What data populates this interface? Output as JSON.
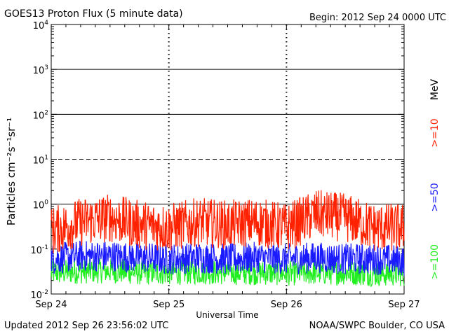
{
  "chart_data": {
    "type": "line",
    "title": "GOES13 Proton Flux (5 minute data)",
    "begin_label": "Begin: 2012 Sep 24 0000 UTC",
    "ylabel": "Particles cm⁻²s⁻¹sr⁻¹",
    "xlabel": "Universal Time",
    "y_scale": "log",
    "ylim": [
      0.01,
      10000
    ],
    "y_ticks": [
      {
        "value": 0.01,
        "base": "10",
        "exp": "-2"
      },
      {
        "value": 0.1,
        "base": "10",
        "exp": "-1"
      },
      {
        "value": 1,
        "base": "10",
        "exp": "0"
      },
      {
        "value": 10,
        "base": "10",
        "exp": "1"
      },
      {
        "value": 100,
        "base": "10",
        "exp": "2"
      },
      {
        "value": 1000,
        "base": "10",
        "exp": "3"
      },
      {
        "value": 10000,
        "base": "10",
        "exp": "4"
      }
    ],
    "x_range_days": [
      0,
      3
    ],
    "x_ticks": [
      {
        "value": 0,
        "label": "Sep 24"
      },
      {
        "value": 1,
        "label": "Sep 25"
      },
      {
        "value": 2,
        "label": "Sep 26"
      },
      {
        "value": 3,
        "label": "Sep 27"
      }
    ],
    "threshold_lines": [
      {
        "value": 1,
        "style": "solid"
      },
      {
        "value": 10,
        "style": "dashed"
      },
      {
        "value": 100,
        "style": "solid"
      },
      {
        "value": 1000,
        "style": "solid"
      }
    ],
    "legend_unit": "MeV",
    "series": [
      {
        "name": ">=10",
        "color": "#ff2200",
        "x": [
          0,
          0.25,
          0.5,
          0.75,
          1,
          1.25,
          1.5,
          1.75,
          2,
          2.25,
          2.5,
          2.75,
          3
        ],
        "values": [
          0.25,
          0.4,
          0.5,
          0.35,
          0.3,
          0.4,
          0.35,
          0.4,
          0.3,
          0.6,
          0.5,
          0.3,
          0.3
        ]
      },
      {
        "name": ">=50",
        "color": "#1a1aff",
        "x": [
          0,
          0.25,
          0.5,
          0.75,
          1,
          1.25,
          1.5,
          1.75,
          2,
          2.25,
          2.5,
          2.75,
          3
        ],
        "values": [
          0.06,
          0.07,
          0.07,
          0.065,
          0.06,
          0.065,
          0.06,
          0.065,
          0.06,
          0.065,
          0.06,
          0.06,
          0.055
        ]
      },
      {
        "name": ">=100",
        "color": "#22ee22",
        "x": [
          0,
          0.25,
          0.5,
          0.75,
          1,
          1.25,
          1.5,
          1.75,
          2,
          2.25,
          2.5,
          2.75,
          3
        ],
        "values": [
          0.03,
          0.032,
          0.033,
          0.03,
          0.03,
          0.031,
          0.03,
          0.03,
          0.029,
          0.03,
          0.03,
          0.028,
          0.028
        ]
      }
    ],
    "grid": false,
    "legend_position": "right-vertical"
  },
  "footer": {
    "updated": "Updated 2012 Sep 26 23:56:02 UTC",
    "credit": "NOAA/SWPC Boulder, CO USA"
  }
}
